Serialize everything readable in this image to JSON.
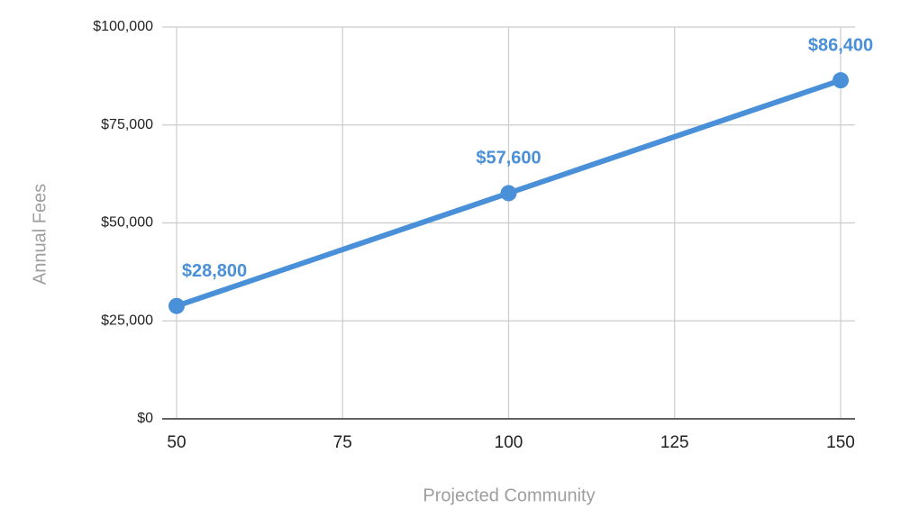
{
  "chart_data": {
    "type": "line",
    "x_label": "Projected Community",
    "y_label": "Annual Fees",
    "x": [
      50,
      100,
      150
    ],
    "values": [
      28800,
      57600,
      86400
    ],
    "value_labels": [
      "$28,800",
      "$57,600",
      "$86,400"
    ],
    "color": "#4a90d9",
    "xlim": [
      50,
      150
    ],
    "xticks": [
      50,
      75,
      100,
      125,
      150
    ],
    "ylim": [
      0,
      100000
    ],
    "yticks": [
      {
        "value": 0,
        "label": "$0"
      },
      {
        "value": 25000,
        "label": "$25,000"
      },
      {
        "value": 50000,
        "label": "$50,000"
      },
      {
        "value": 75000,
        "label": "$75,000"
      },
      {
        "value": 100000,
        "label": "$100,000"
      }
    ],
    "grid": true
  }
}
